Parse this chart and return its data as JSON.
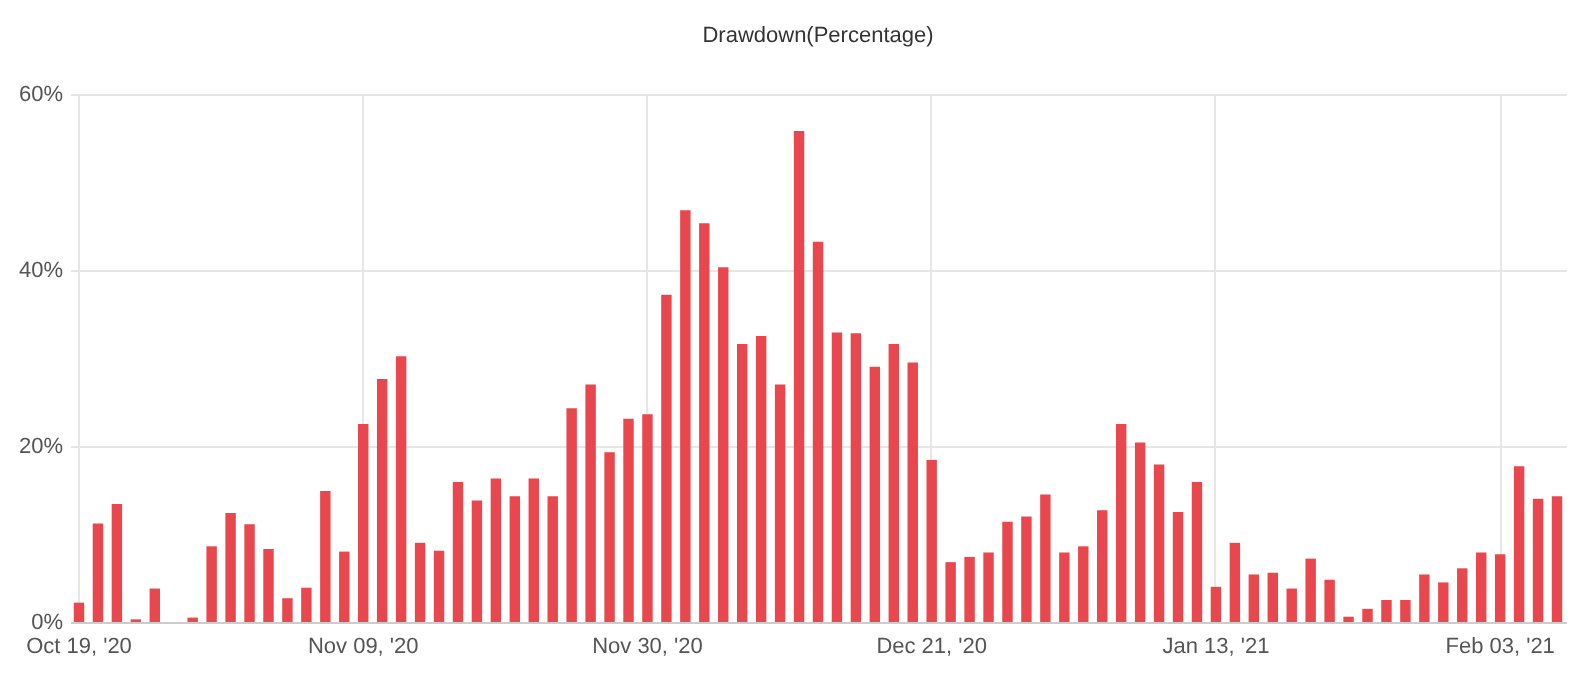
{
  "chart_data": {
    "type": "bar",
    "title": "Drawdown(Percentage)",
    "categories": [
      "Oct 19, '20",
      null,
      null,
      null,
      null,
      null,
      null,
      null,
      null,
      null,
      null,
      null,
      null,
      null,
      null,
      "Nov 09, '20",
      null,
      null,
      null,
      null,
      null,
      null,
      null,
      null,
      null,
      null,
      null,
      null,
      null,
      null,
      "Nov 30, '20",
      null,
      null,
      null,
      null,
      null,
      null,
      null,
      null,
      null,
      null,
      null,
      null,
      null,
      null,
      "Dec 21, '20",
      null,
      null,
      null,
      null,
      null,
      null,
      null,
      null,
      null,
      null,
      null,
      null,
      null,
      null,
      "Jan 13, '21",
      null,
      null,
      null,
      null,
      null,
      null,
      null,
      null,
      null,
      null,
      null,
      null,
      null,
      null,
      "Feb 03, '21",
      null,
      null,
      null
    ],
    "values": [
      2.2,
      11.2,
      13.4,
      0.3,
      3.8,
      0,
      0.5,
      8.6,
      12.4,
      11.1,
      8.3,
      2.7,
      3.9,
      14.9,
      8.0,
      22.5,
      27.6,
      30.2,
      9.0,
      8.1,
      15.9,
      13.8,
      16.3,
      14.3,
      16.3,
      14.3,
      24.3,
      27.0,
      19.3,
      23.1,
      23.6,
      37.2,
      46.8,
      45.3,
      40.3,
      31.6,
      32.5,
      27.0,
      55.8,
      43.2,
      32.9,
      32.8,
      29.0,
      31.6,
      29.5,
      18.4,
      6.8,
      7.4,
      7.9,
      11.4,
      12.0,
      14.5,
      7.9,
      8.6,
      12.7,
      22.5,
      20.4,
      17.9,
      12.5,
      15.9,
      4.0,
      9.0,
      5.4,
      5.6,
      3.8,
      7.2,
      4.8,
      0.6,
      1.5,
      2.5,
      2.5,
      5.4,
      4.5,
      6.1,
      7.9,
      7.7,
      17.7,
      14.0,
      14.3
    ],
    "color": "#e8474d",
    "ylim": [
      0,
      60
    ],
    "yticks": [
      {
        "value": 0,
        "label": "0%"
      },
      {
        "value": 20,
        "label": "20%"
      },
      {
        "value": 40,
        "label": "40%"
      },
      {
        "value": 60,
        "label": "60%"
      }
    ],
    "grid": true
  }
}
